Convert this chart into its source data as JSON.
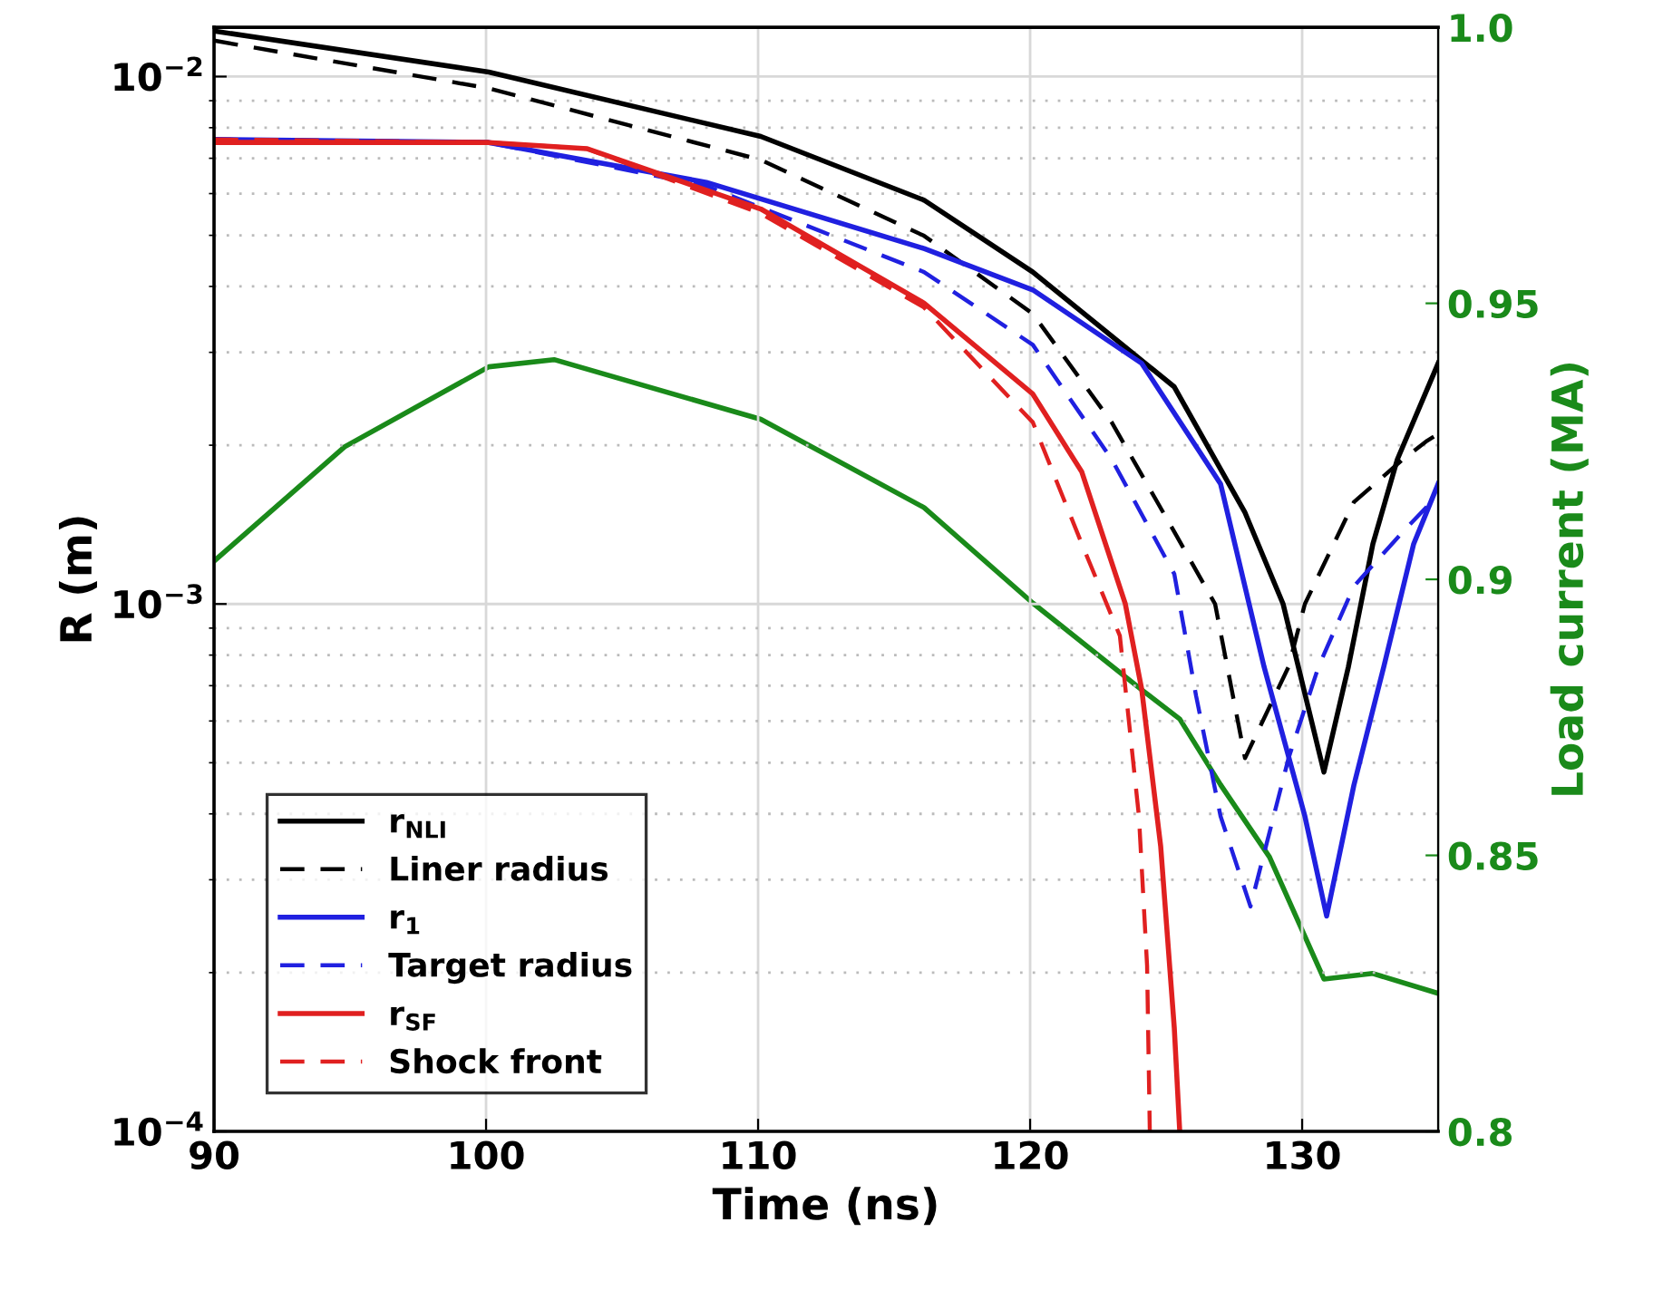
{
  "chart_data": {
    "type": "line",
    "xlabel": "Time (ns)",
    "ylabel": "R (m)",
    "y2label": "Load current (MA)",
    "xlim": [
      90,
      135
    ],
    "xticks": [
      90,
      100,
      110,
      120,
      130
    ],
    "ylim": [
      0.0001,
      0.0124
    ],
    "yticks": [
      {
        "value": 0.0001,
        "label": "10$^{−4}$"
      },
      {
        "value": 0.001,
        "label": "10$^{−3}$"
      },
      {
        "value": 0.01,
        "label": "10$^{−2}$"
      }
    ],
    "y2lim": [
      0.8,
      1.0
    ],
    "y2ticks": [
      0.8,
      0.85,
      0.9,
      0.95,
      {
        "value": 1.0,
        "label": "1.0"
      }
    ],
    "log": "y",
    "grid": true,
    "legend": "bottom left",
    "marker": "none",
    "series": [
      {
        "name": "r$_{NLI}$",
        "color": "#000000",
        "line_style": "solid",
        "x": [
          90,
          100.1,
          110.1,
          116.1,
          120.1,
          125.3,
          127.9,
          129.3,
          130.8,
          131.7,
          132.6,
          133.5,
          135
        ],
        "values": [
          0.0122,
          0.0102,
          0.0077,
          0.00583,
          0.00426,
          0.00258,
          0.00149,
          0.001,
          0.00048,
          0.00076,
          0.0013,
          0.00188,
          0.00286
        ]
      },
      {
        "name": "Liner radius",
        "color": "#000000",
        "line_style": "dashed",
        "x": [
          90,
          100.1,
          110.1,
          116.1,
          120.1,
          123,
          125.3,
          126.8,
          127.9,
          129.5,
          130.1,
          131.9,
          133.7,
          134.6,
          135
        ],
        "values": [
          0.0117,
          0.0095,
          0.00695,
          0.00499,
          0.00355,
          0.00221,
          0.00137,
          0.001,
          0.00051,
          0.00076,
          0.001,
          0.00156,
          0.00188,
          0.00204,
          0.0021
        ]
      },
      {
        "name": "r$_{1}$",
        "color": "#2020e0",
        "line_style": "solid",
        "x": [
          90,
          100.1,
          108.1,
          116.1,
          120.1,
          124.1,
          127,
          128.6,
          130.1,
          130.9,
          131.9,
          133,
          134.1,
          135
        ],
        "values": [
          0.0076,
          0.0075,
          0.0063,
          0.00472,
          0.00394,
          0.00286,
          0.00169,
          0.00076,
          0.000396,
          0.000256,
          0.000453,
          0.00076,
          0.0013,
          0.00169
        ]
      },
      {
        "name": "Target radius",
        "color": "#2020e0",
        "line_style": "dashed",
        "x": [
          90,
          100.1,
          108.1,
          116.1,
          120.1,
          123,
          125.3,
          126.1,
          127,
          128.1,
          129.5,
          130.6,
          131.9,
          133.7,
          135
        ],
        "values": [
          0.0076,
          0.0075,
          0.0062,
          0.00426,
          0.0031,
          0.00188,
          0.00114,
          0.00067,
          0.000396,
          0.000267,
          0.00051,
          0.00076,
          0.00108,
          0.00137,
          0.00161
        ]
      },
      {
        "name": "r$_{SF}$",
        "color": "#e02020",
        "line_style": "solid",
        "x": [
          90,
          100.1,
          103.7,
          110.1,
          116.1,
          120.1,
          121.9,
          123.5,
          124.1,
          124.8,
          125.3,
          125.5
        ],
        "values": [
          0.0075,
          0.0075,
          0.0073,
          0.00561,
          0.00372,
          0.0025,
          0.00178,
          0.001,
          0.00069,
          0.000347,
          0.000157,
          0.0001
        ]
      },
      {
        "name": "Shock front",
        "color": "#e02020",
        "line_style": "dashed",
        "x": [
          90,
          100.1,
          103.7,
          110.1,
          116.1,
          120.1,
          121.9,
          123.3,
          124,
          124.3,
          124.4
        ],
        "values": [
          0.0076,
          0.0075,
          0.0073,
          0.0055,
          0.00365,
          0.00221,
          0.0013,
          0.00087,
          0.000396,
          0.000206,
          0.0001
        ]
      },
      {
        "axis": "y2",
        "color": "#1a8a1a",
        "line_style": "solid",
        "x": [
          90,
          94.8,
          100.1,
          102.5,
          110.1,
          116.1,
          120.1,
          124.1,
          125.5,
          127,
          128.8,
          130.8,
          132.6,
          135
        ],
        "values": [
          0.9033,
          0.924,
          0.9385,
          0.9398,
          0.929,
          0.913,
          0.8957,
          0.88,
          0.8747,
          0.8628,
          0.8497,
          0.8276,
          0.8286,
          0.825
        ]
      }
    ]
  }
}
